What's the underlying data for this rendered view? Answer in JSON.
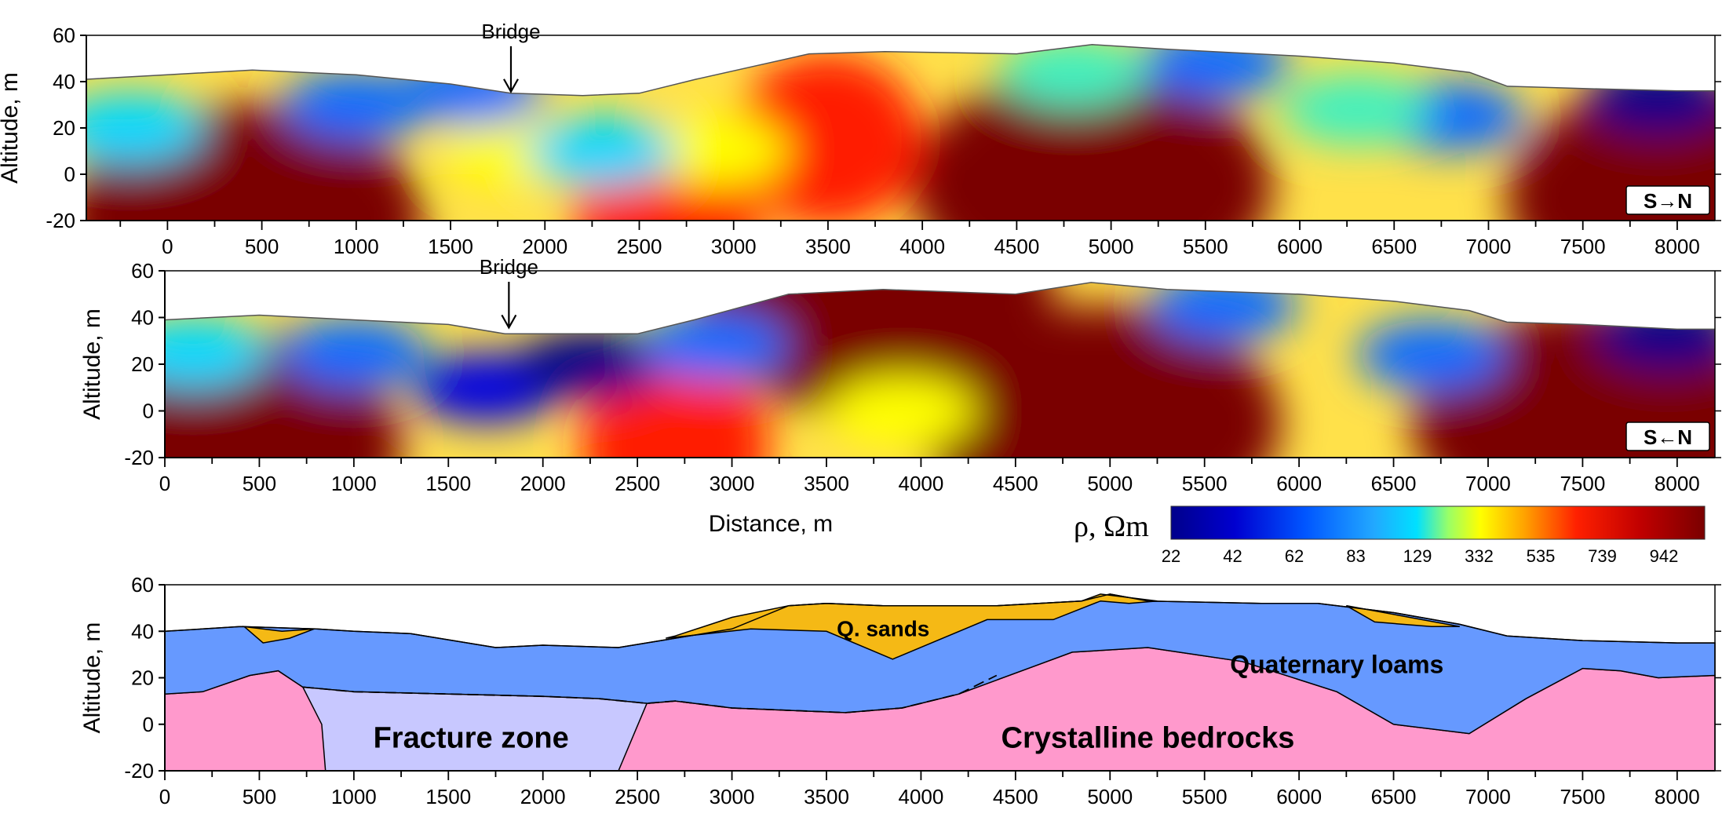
{
  "chart_data": [
    {
      "type": "heatmap",
      "panel": "top",
      "ylabel": "Altitude, m",
      "ylim": [
        -20,
        60
      ],
      "yticks": [
        60,
        40,
        20,
        0,
        -20
      ],
      "xlim": [
        -430,
        8200
      ],
      "xticks": [
        0,
        500,
        1000,
        1500,
        2000,
        2500,
        3000,
        3500,
        4000,
        4500,
        5000,
        5500,
        6000,
        6500,
        7000,
        7500,
        8000
      ],
      "direction": "S→N",
      "annotation": {
        "text": "Bridge",
        "x": 1820
      },
      "surface": [
        [
          -430,
          41
        ],
        [
          0,
          43
        ],
        [
          450,
          45
        ],
        [
          1000,
          43
        ],
        [
          1500,
          39
        ],
        [
          1820,
          35
        ],
        [
          2200,
          34
        ],
        [
          2500,
          35
        ],
        [
          2800,
          41
        ],
        [
          3400,
          52
        ],
        [
          3800,
          53
        ],
        [
          4500,
          52
        ],
        [
          4900,
          56
        ],
        [
          5300,
          54
        ],
        [
          6000,
          51
        ],
        [
          6500,
          48
        ],
        [
          6900,
          44
        ],
        [
          7100,
          38
        ],
        [
          7500,
          37
        ],
        [
          8000,
          36
        ],
        [
          8200,
          36
        ]
      ],
      "blobs": [
        {
          "x": 400,
          "y": -20,
          "value": 942
        },
        {
          "x": 4900,
          "y": -5,
          "value": 942
        },
        {
          "x": 8050,
          "y": -10,
          "value": 942
        },
        {
          "x": 3500,
          "y": 15,
          "value": 700
        },
        {
          "x": 2650,
          "y": -15,
          "value": 700
        },
        {
          "x": 2900,
          "y": 10,
          "value": 332
        },
        {
          "x": 1850,
          "y": 10,
          "value": 300
        },
        {
          "x": 1000,
          "y": 30,
          "value": 62
        },
        {
          "x": 1600,
          "y": 36,
          "value": 62
        },
        {
          "x": 2300,
          "y": 10,
          "value": 110
        },
        {
          "x": -200,
          "y": 20,
          "value": 110
        },
        {
          "x": 6800,
          "y": 25,
          "value": 62
        },
        {
          "x": 5550,
          "y": 48,
          "value": 62
        },
        {
          "x": 7900,
          "y": 33,
          "value": 22
        },
        {
          "x": 6300,
          "y": 28,
          "value": 129
        },
        {
          "x": 4800,
          "y": 44,
          "value": 129
        }
      ]
    },
    {
      "type": "heatmap",
      "panel": "middle",
      "ylabel": "Altitude, m",
      "xlabel": "Distance, m",
      "ylim": [
        -20,
        60
      ],
      "yticks": [
        60,
        40,
        20,
        0,
        -20
      ],
      "xlim": [
        0,
        8200
      ],
      "xticks": [
        0,
        500,
        1000,
        1500,
        2000,
        2500,
        3000,
        3500,
        4000,
        4500,
        5000,
        5500,
        6000,
        6500,
        7000,
        7500,
        8000
      ],
      "direction": "S←N",
      "annotation": {
        "text": "Bridge",
        "x": 1820
      },
      "surface": [
        [
          0,
          39
        ],
        [
          500,
          41
        ],
        [
          1000,
          39
        ],
        [
          1500,
          37
        ],
        [
          1800,
          33
        ],
        [
          2500,
          33
        ],
        [
          2800,
          39
        ],
        [
          3300,
          50
        ],
        [
          3800,
          52
        ],
        [
          4500,
          50
        ],
        [
          4900,
          55
        ],
        [
          5300,
          52
        ],
        [
          6000,
          50
        ],
        [
          6500,
          47
        ],
        [
          6900,
          43
        ],
        [
          7100,
          38
        ],
        [
          7500,
          37
        ],
        [
          8000,
          35
        ],
        [
          8200,
          35
        ]
      ],
      "blobs": [
        {
          "x": 300,
          "y": -15,
          "value": 942
        },
        {
          "x": 4950,
          "y": -5,
          "value": 942
        },
        {
          "x": 7550,
          "y": -5,
          "value": 942
        },
        {
          "x": 3750,
          "y": 48,
          "value": 942
        },
        {
          "x": 2700,
          "y": -15,
          "value": 700
        },
        {
          "x": 3900,
          "y": 0,
          "value": 332
        },
        {
          "x": 1700,
          "y": 10,
          "value": 42
        },
        {
          "x": 2250,
          "y": 20,
          "value": 22
        },
        {
          "x": 1000,
          "y": 25,
          "value": 62
        },
        {
          "x": 2900,
          "y": 28,
          "value": 62
        },
        {
          "x": 6700,
          "y": 24,
          "value": 62
        },
        {
          "x": 7950,
          "y": 33,
          "value": 22
        },
        {
          "x": 5600,
          "y": 45,
          "value": 62
        },
        {
          "x": 150,
          "y": 25,
          "value": 110
        }
      ]
    },
    {
      "type": "colorbar",
      "label": "ρ, Ωm",
      "ticks": [
        22,
        42,
        62,
        83,
        129,
        332,
        535,
        739,
        942
      ],
      "tick_labels": [
        "22",
        "42",
        "62",
        "83",
        "129",
        "332",
        "535",
        "739",
        "942"
      ]
    },
    {
      "type": "area",
      "panel": "bottom",
      "ylabel": "Altitude, m",
      "ylim": [
        -20,
        60
      ],
      "yticks": [
        60,
        40,
        20,
        0,
        -20
      ],
      "xlim": [
        0,
        8200
      ],
      "xticks": [
        0,
        500,
        1000,
        1500,
        2000,
        2500,
        3000,
        3500,
        4000,
        4500,
        5000,
        5500,
        6000,
        6500,
        7000,
        7500,
        8000
      ],
      "units": [
        {
          "name": "Q. sands",
          "color": "#f5b915",
          "label_at": [
            3800,
            42
          ],
          "label_size": 28
        },
        {
          "name": "Quaternary loams",
          "color": "#6699ff",
          "label_at": [
            6200,
            26
          ],
          "label_size": 32
        },
        {
          "name": "Fracture zone",
          "color": "#c8c8ff",
          "label_at": [
            1620,
            -6
          ],
          "label_size": 38
        },
        {
          "name": "Crystalline bedrocks",
          "color": "#ff99cc",
          "label_at": [
            5200,
            -6
          ],
          "label_size": 38
        }
      ],
      "surface": [
        [
          0,
          40
        ],
        [
          400,
          42
        ],
        [
          800,
          41
        ],
        [
          1000,
          40
        ],
        [
          1300,
          39
        ],
        [
          1750,
          33
        ],
        [
          2000,
          34
        ],
        [
          2400,
          33
        ],
        [
          2700,
          37
        ],
        [
          3000,
          41
        ],
        [
          3300,
          51
        ],
        [
          3500,
          52
        ],
        [
          3800,
          51
        ],
        [
          4400,
          51
        ],
        [
          4850,
          53
        ],
        [
          5000,
          56
        ],
        [
          5200,
          53
        ],
        [
          5800,
          52
        ],
        [
          6100,
          52
        ],
        [
          6500,
          48
        ],
        [
          6850,
          43
        ],
        [
          7100,
          38
        ],
        [
          7500,
          36
        ],
        [
          8000,
          35
        ],
        [
          8200,
          35
        ]
      ],
      "loam_base": [
        [
          0,
          13
        ],
        [
          200,
          14
        ],
        [
          450,
          21
        ],
        [
          600,
          23
        ],
        [
          730,
          16
        ],
        [
          1000,
          14
        ],
        [
          1500,
          13
        ],
        [
          2000,
          12
        ],
        [
          2300,
          11
        ],
        [
          2550,
          9
        ],
        [
          2700,
          10
        ],
        [
          3000,
          7
        ],
        [
          3300,
          6
        ],
        [
          3600,
          5
        ],
        [
          3900,
          7
        ],
        [
          4200,
          13
        ],
        [
          4600,
          25
        ],
        [
          4800,
          31
        ],
        [
          5200,
          33
        ],
        [
          5700,
          27
        ],
        [
          6200,
          14
        ],
        [
          6500,
          0
        ],
        [
          6900,
          -4
        ],
        [
          7200,
          11
        ],
        [
          7500,
          24
        ],
        [
          7700,
          23
        ],
        [
          7900,
          20
        ],
        [
          8200,
          21
        ]
      ],
      "sand_lenses": [
        [
          [
            420,
            42
          ],
          [
            620,
            40
          ],
          [
            790,
            41
          ],
          [
            660,
            37
          ],
          [
            520,
            35
          ]
        ],
        [
          [
            2650,
            37
          ],
          [
            3100,
            41
          ],
          [
            3500,
            40
          ],
          [
            3850,
            28
          ],
          [
            4350,
            45
          ],
          [
            4700,
            45
          ],
          [
            4950,
            53
          ],
          [
            5100,
            52
          ],
          [
            5250,
            53
          ],
          [
            4950,
            56
          ],
          [
            4850,
            53
          ],
          [
            4400,
            51
          ],
          [
            3800,
            51
          ],
          [
            3500,
            52
          ],
          [
            3300,
            51
          ],
          [
            3000,
            46
          ],
          [
            2700,
            38
          ]
        ],
        [
          [
            6250,
            51
          ],
          [
            6850,
            42
          ],
          [
            6700,
            42
          ],
          [
            6400,
            44
          ]
        ]
      ],
      "fracture_zone": [
        [
          730,
          16
        ],
        [
          1000,
          14
        ],
        [
          1500,
          13
        ],
        [
          2000,
          12
        ],
        [
          2300,
          11
        ],
        [
          2550,
          9
        ],
        [
          2400,
          -20
        ],
        [
          850,
          -20
        ],
        [
          830,
          0
        ]
      ]
    }
  ]
}
